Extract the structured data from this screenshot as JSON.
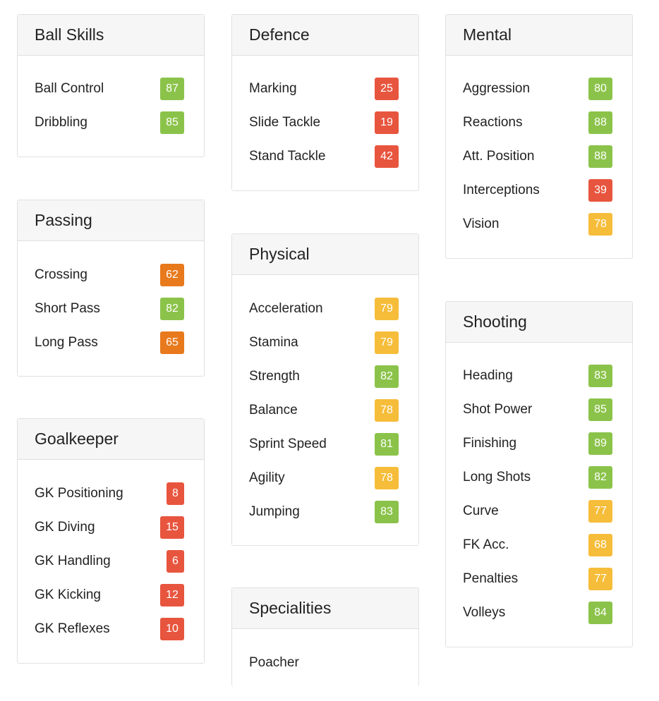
{
  "colors": {
    "green": "#8bc34a",
    "yellow": "#f6bd3a",
    "orange": "#e8791c",
    "red": "#e8553e"
  },
  "ball_skills": {
    "title": "Ball Skills",
    "items": [
      {
        "label": "Ball Control",
        "value": "87"
      },
      {
        "label": "Dribbling",
        "value": "85"
      }
    ]
  },
  "passing": {
    "title": "Passing",
    "items": [
      {
        "label": "Crossing",
        "value": "62"
      },
      {
        "label": "Short Pass",
        "value": "82"
      },
      {
        "label": "Long Pass",
        "value": "65"
      }
    ]
  },
  "goalkeeper": {
    "title": "Goalkeeper",
    "items": [
      {
        "label": "GK Positioning",
        "value": "8"
      },
      {
        "label": "GK Diving",
        "value": "15"
      },
      {
        "label": "GK Handling",
        "value": "6"
      },
      {
        "label": "GK Kicking",
        "value": "12"
      },
      {
        "label": "GK Reflexes",
        "value": "10"
      }
    ]
  },
  "defence": {
    "title": "Defence",
    "items": [
      {
        "label": "Marking",
        "value": "25"
      },
      {
        "label": "Slide Tackle",
        "value": "19"
      },
      {
        "label": "Stand Tackle",
        "value": "42"
      }
    ]
  },
  "physical": {
    "title": "Physical",
    "items": [
      {
        "label": "Acceleration",
        "value": "79"
      },
      {
        "label": "Stamina",
        "value": "79"
      },
      {
        "label": "Strength",
        "value": "82"
      },
      {
        "label": "Balance",
        "value": "78"
      },
      {
        "label": "Sprint Speed",
        "value": "81"
      },
      {
        "label": "Agility",
        "value": "78"
      },
      {
        "label": "Jumping",
        "value": "83"
      }
    ]
  },
  "specialities": {
    "title": "Specialities",
    "items": [
      {
        "label": "Poacher"
      }
    ]
  },
  "mental": {
    "title": "Mental",
    "items": [
      {
        "label": "Aggression",
        "value": "80"
      },
      {
        "label": "Reactions",
        "value": "88"
      },
      {
        "label": "Att. Position",
        "value": "88"
      },
      {
        "label": "Interceptions",
        "value": "39"
      },
      {
        "label": "Vision",
        "value": "78"
      }
    ]
  },
  "shooting": {
    "title": "Shooting",
    "items": [
      {
        "label": "Heading",
        "value": "83"
      },
      {
        "label": "Shot Power",
        "value": "85"
      },
      {
        "label": "Finishing",
        "value": "89"
      },
      {
        "label": "Long Shots",
        "value": "82"
      },
      {
        "label": "Curve",
        "value": "77"
      },
      {
        "label": "FK Acc.",
        "value": "68"
      },
      {
        "label": "Penalties",
        "value": "77"
      },
      {
        "label": "Volleys",
        "value": "84"
      }
    ]
  }
}
